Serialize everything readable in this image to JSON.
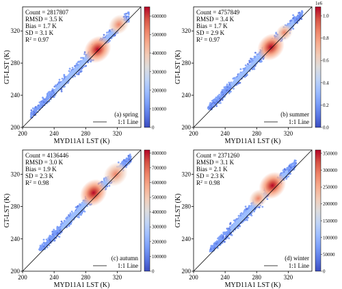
{
  "colormap": [
    "#3b4cc0",
    "#5a78e4",
    "#7b9ff9",
    "#9ebeff",
    "#c0d4f5",
    "#dddcdc",
    "#f2cbb7",
    "#f7ac8e",
    "#ee8468",
    "#d65244",
    "#b40426"
  ],
  "chart_data": [
    {
      "type": "scatter",
      "panel_label": "(a) spring",
      "xlabel": "MYD11A1 LST (K)",
      "ylabel": "GT-LST (K)",
      "xlim": [
        200,
        350
      ],
      "ylim": [
        200,
        350
      ],
      "xticks": [
        "200",
        "240",
        "280",
        "320"
      ],
      "yticks": [
        "200",
        "240",
        "280",
        "320"
      ],
      "stats": {
        "count": "Count = 2817807",
        "rmsd": "RMSD = 3.5 K",
        "bias": "Bias = 1.7 K",
        "sd": "SD = 3.1 K",
        "r2_prefix": "R",
        "r2_exp": "2",
        "r2_value": " = 0.97"
      },
      "legend_label": "1:1 Line",
      "colorbar": {
        "max": 650000,
        "ticks": [
          "0",
          "100000",
          "200000",
          "300000",
          "400000",
          "500000",
          "600000"
        ],
        "tick_values": [
          0,
          100000,
          200000,
          300000,
          400000,
          500000,
          600000
        ],
        "exponent": ""
      },
      "density_peaks": [
        {
          "x": 295,
          "y": 297,
          "weight": 1.0
        },
        {
          "x": 322,
          "y": 328,
          "weight": 0.55
        }
      ],
      "cloud_extent": {
        "x": [
          210,
          335
        ],
        "y": [
          212,
          345
        ]
      }
    },
    {
      "type": "scatter",
      "panel_label": "(b) summer",
      "xlabel": "MYD11A1 LST (K)",
      "ylabel": "GT-LST (K)",
      "xlim": [
        200,
        350
      ],
      "ylim": [
        200,
        350
      ],
      "xticks": [
        "200",
        "240",
        "280",
        "320"
      ],
      "yticks": [
        "200",
        "240",
        "280",
        "320"
      ],
      "stats": {
        "count": "Count = 4757849",
        "rmsd": "RMSD = 3.4 K",
        "bias": "Bias = 1.7 K",
        "sd": "SD = 2.9 K",
        "r2_prefix": "R",
        "r2_exp": "2",
        "r2_value": " = 0.97"
      },
      "legend_label": "1:1 Line",
      "colorbar": {
        "max": 1.08,
        "ticks": [
          "0.0",
          "0.2",
          "0.4",
          "0.6",
          "0.8",
          "1.0"
        ],
        "tick_values": [
          0.0,
          0.2,
          0.4,
          0.6,
          0.8,
          1.0
        ],
        "exponent": "1e6"
      },
      "density_peaks": [
        {
          "x": 298,
          "y": 300,
          "weight": 1.0
        },
        {
          "x": 315,
          "y": 318,
          "weight": 0.35
        }
      ],
      "cloud_extent": {
        "x": [
          218,
          338
        ],
        "y": [
          222,
          345
        ]
      }
    },
    {
      "type": "scatter",
      "panel_label": "(c) autumn",
      "xlabel": "MYD11A1 LST (K)",
      "ylabel": "GT-LST (K)",
      "xlim": [
        200,
        350
      ],
      "ylim": [
        200,
        350
      ],
      "xticks": [
        "200",
        "240",
        "280",
        "320"
      ],
      "yticks": [
        "200",
        "240",
        "280",
        "320"
      ],
      "stats": {
        "count": "Count = 4136446",
        "rmsd": "RMSD = 3.0 K",
        "bias": "Bias = 1.9 K",
        "sd": "SD = 2.3 K",
        "r2_prefix": "R",
        "r2_exp": "2",
        "r2_value": " = 0.98"
      },
      "legend_label": "1:1 Line",
      "colorbar": {
        "max": 820000,
        "ticks": [
          "0",
          "100000",
          "200000",
          "300000",
          "400000",
          "500000",
          "600000",
          "700000",
          "800000"
        ],
        "tick_values": [
          0,
          100000,
          200000,
          300000,
          400000,
          500000,
          600000,
          700000,
          800000
        ],
        "exponent": ""
      },
      "density_peaks": [
        {
          "x": 290,
          "y": 297,
          "weight": 1.0
        },
        {
          "x": 318,
          "y": 320,
          "weight": 0.8
        }
      ],
      "cloud_extent": {
        "x": [
          220,
          338
        ],
        "y": [
          226,
          345
        ]
      }
    },
    {
      "type": "scatter",
      "panel_label": "(d) winter",
      "xlabel": "MYD11A1 LST (K)",
      "ylabel": "GT-LST (K)",
      "xlim": [
        200,
        350
      ],
      "ylim": [
        200,
        350
      ],
      "xticks": [
        "200",
        "240",
        "280",
        "320"
      ],
      "yticks": [
        "200",
        "240",
        "280",
        "320"
      ],
      "stats": {
        "count": "Count = 2371260",
        "rmsd": "RMSD = 3.1 K",
        "bias": "Bias = 2.1 K",
        "sd": "SD = 2.3 K",
        "r2_prefix": "R",
        "r2_exp": "2",
        "r2_value": " = 0.98"
      },
      "legend_label": "1:1 Line",
      "colorbar": {
        "max": 360000,
        "ticks": [
          "0",
          "50000",
          "100000",
          "150000",
          "200000",
          "250000",
          "300000",
          "350000"
        ],
        "tick_values": [
          0,
          50000,
          100000,
          150000,
          200000,
          250000,
          300000,
          350000
        ],
        "exponent": ""
      },
      "density_peaks": [
        {
          "x": 300,
          "y": 306,
          "weight": 1.0
        },
        {
          "x": 282,
          "y": 290,
          "weight": 0.45
        }
      ],
      "cloud_extent": {
        "x": [
          220,
          330
        ],
        "y": [
          224,
          345
        ]
      }
    }
  ]
}
